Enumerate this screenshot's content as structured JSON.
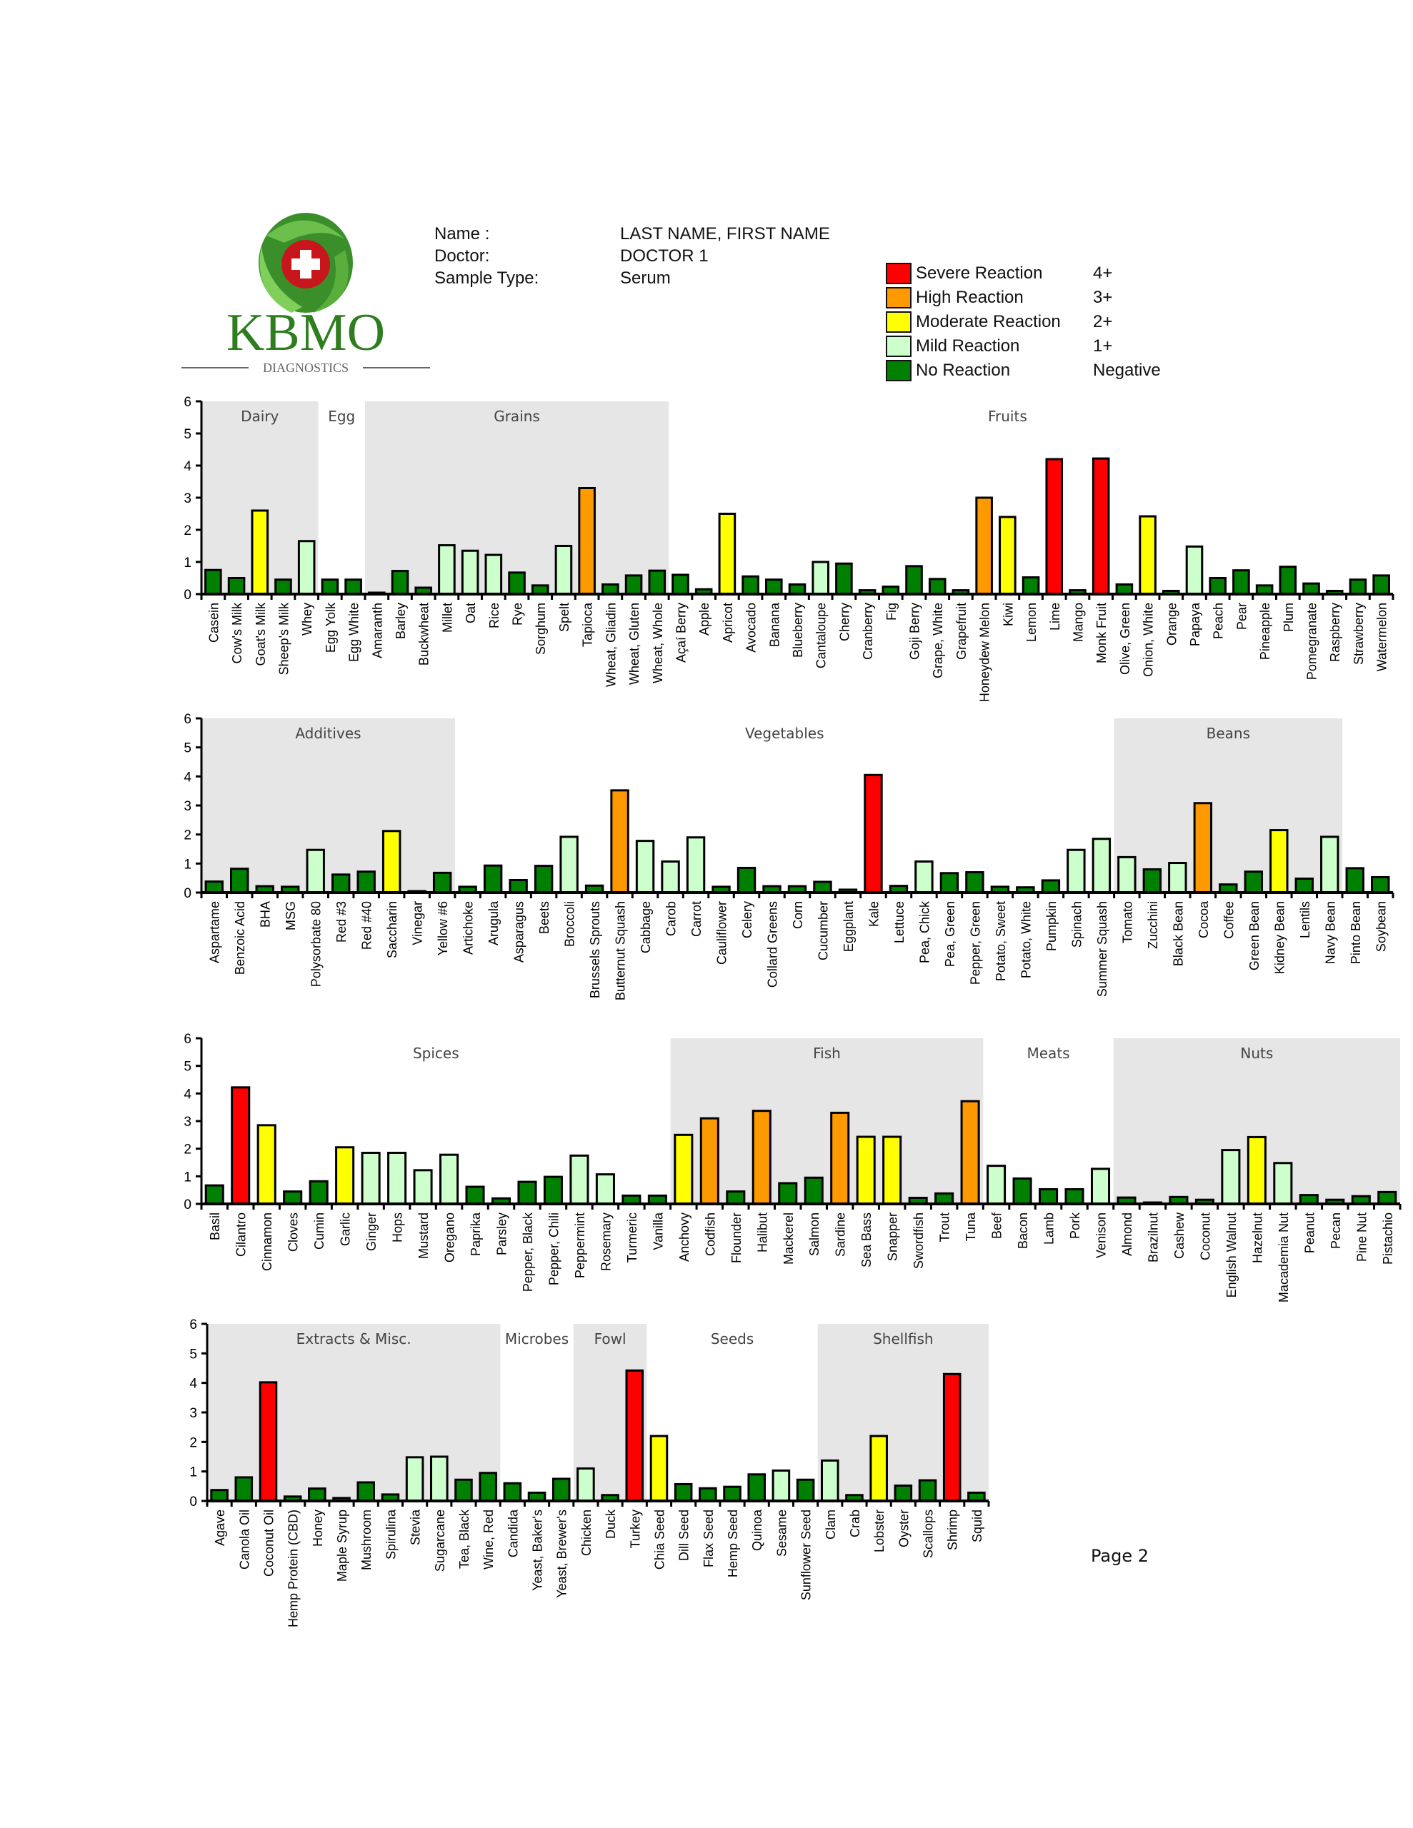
{
  "brand": {
    "name": "KBMO",
    "sub": "DIAGNOSTICS"
  },
  "patient": {
    "rows": [
      {
        "label": "Name :",
        "value": "LAST NAME, FIRST NAME"
      },
      {
        "label": "Doctor:",
        "value": "DOCTOR 1"
      },
      {
        "label": "Sample Type:",
        "value": "Serum"
      }
    ]
  },
  "legend": [
    {
      "name": "Severe Reaction",
      "grade": "4+",
      "color": "#ff0000"
    },
    {
      "name": "High Reaction",
      "grade": "3+",
      "color": "#ff9900"
    },
    {
      "name": "Moderate Reaction",
      "grade": "2+",
      "color": "#ffff00"
    },
    {
      "name": "Mild Reaction",
      "grade": "1+",
      "color": "#ccffcc"
    },
    {
      "name": "No Reaction",
      "grade": "Negative",
      "color": "#008000"
    }
  ],
  "page_label": "Page 2",
  "chart_data": [
    {
      "type": "bar",
      "ylim": [
        0,
        6
      ],
      "yticks": [
        0,
        1,
        2,
        3,
        4,
        5,
        6
      ],
      "groups": [
        {
          "name": "Dairy",
          "start": 0,
          "end": 4,
          "shaded": true
        },
        {
          "name": "Egg",
          "start": 5,
          "end": 6,
          "shaded": false
        },
        {
          "name": "Grains",
          "start": 7,
          "end": 19,
          "shaded": true
        },
        {
          "name": "Fruits",
          "start": 20,
          "end": 48,
          "shaded": false
        }
      ],
      "categories": [
        "Casein",
        "Cow's Milk",
        "Goat's Milk",
        "Sheep's Milk",
        "Whey",
        "Egg Yolk",
        "Egg White",
        "Amaranth",
        "Barley",
        "Buckwheat",
        "Millet",
        "Oat",
        "Rice",
        "Rye",
        "Sorghum",
        "Spelt",
        "Tapioca",
        "Wheat, Gliadin",
        "Wheat, Gluten",
        "Wheat, Whole",
        "Açaí Berry",
        "Apple",
        "Apricot",
        "Avocado",
        "Banana",
        "Blueberry",
        "Cantaloupe",
        "Cherry",
        "Cranberry",
        "Fig",
        "Goji Berry",
        "Grape, White",
        "Grapefruit",
        "Honeydew Melon",
        "Kiwi",
        "Lemon",
        "Lime",
        "Mango",
        "Monk Fruit",
        "Olive, Green",
        "Onion, White",
        "Orange",
        "Papaya",
        "Peach",
        "Pear",
        "Pineapple",
        "Plum",
        "Pomegranate",
        "Raspberry",
        "Strawberry",
        "Watermelon"
      ],
      "values": [
        0.75,
        0.5,
        2.6,
        0.45,
        1.65,
        0.45,
        0.45,
        0.03,
        0.72,
        0.2,
        1.52,
        1.35,
        1.22,
        0.67,
        0.27,
        1.5,
        3.3,
        0.3,
        0.58,
        0.73,
        0.6,
        0.15,
        2.5,
        0.55,
        0.45,
        0.3,
        1.0,
        0.95,
        0.12,
        0.23,
        0.87,
        0.47,
        0.12,
        3.0,
        2.4,
        0.52,
        4.2,
        0.12,
        4.22,
        0.3,
        2.42,
        0.1,
        1.48,
        0.5,
        0.74,
        0.27,
        0.85,
        0.33,
        0.1,
        0.45,
        0.58
      ]
    },
    {
      "type": "bar",
      "ylim": [
        0,
        6
      ],
      "yticks": [
        0,
        1,
        2,
        3,
        4,
        5,
        6
      ],
      "groups": [
        {
          "name": "Additives",
          "start": 0,
          "end": 9,
          "shaded": true
        },
        {
          "name": "Vegetables",
          "start": 10,
          "end": 35,
          "shaded": false
        },
        {
          "name": "Beans",
          "start": 36,
          "end": 44,
          "shaded": true
        }
      ],
      "categories": [
        "Aspartame",
        "Benzoic Acid",
        "BHA",
        "MSG",
        "Polysorbate 80",
        "Red #3",
        "Red #40",
        "Saccharin",
        "Vinegar",
        "Yellow #6",
        "Artichoke",
        "Arugula",
        "Asparagus",
        "Beets",
        "Broccoli",
        "Brussels Sprouts",
        "Butternut Squash",
        "Cabbage",
        "Carob",
        "Carrot",
        "Cauliflower",
        "Celery",
        "Collard Greens",
        "Corn",
        "Cucumber",
        "Eggplant",
        "Kale",
        "Lettuce",
        "Pea, Chick",
        "Pea, Green",
        "Pepper, Green",
        "Potato, Sweet",
        "Potato, White",
        "Pumpkin",
        "Spinach",
        "Summer Squash",
        "Tomato",
        "Zucchini",
        "Black Bean",
        "Cocoa",
        "Coffee",
        "Green Bean",
        "Kidney Bean",
        "Lentils",
        "Navy Bean",
        "Pinto Bean",
        "Soybean"
      ],
      "values": [
        0.38,
        0.82,
        0.22,
        0.2,
        1.47,
        0.62,
        0.72,
        2.12,
        0.05,
        0.68,
        0.2,
        0.93,
        0.43,
        0.92,
        1.92,
        0.24,
        3.52,
        1.78,
        1.07,
        1.9,
        0.2,
        0.85,
        0.22,
        0.22,
        0.37,
        0.1,
        4.05,
        0.23,
        1.07,
        0.67,
        0.7,
        0.2,
        0.18,
        0.42,
        1.47,
        1.85,
        1.22,
        0.8,
        1.02,
        3.08,
        0.28,
        0.72,
        2.15,
        0.48,
        1.92,
        0.84,
        0.53
      ]
    },
    {
      "type": "bar",
      "ylim": [
        0,
        6
      ],
      "yticks": [
        0,
        1,
        2,
        3,
        4,
        5,
        6
      ],
      "groups": [
        {
          "name": "Spices",
          "start": 0,
          "end": 17,
          "shaded": false
        },
        {
          "name": "Fish",
          "start": 18,
          "end": 29,
          "shaded": true
        },
        {
          "name": "Meats",
          "start": 30,
          "end": 34,
          "shaded": false
        },
        {
          "name": "Nuts",
          "start": 35,
          "end": 45,
          "shaded": true
        }
      ],
      "categories": [
        "Basil",
        "Cilantro",
        "Cinnamon",
        "Cloves",
        "Cumin",
        "Garlic",
        "Ginger",
        "Hops",
        "Mustard",
        "Oregano",
        "Paprika",
        "Parsley",
        "Pepper, Black",
        "Pepper, Chili",
        "Peppermint",
        "Rosemary",
        "Turmeric",
        "Vanilla",
        "Anchovy",
        "Codfish",
        "Flounder",
        "Halibut",
        "Mackerel",
        "Salmon",
        "Sardine",
        "Sea Bass",
        "Snapper",
        "Swordfish",
        "Trout",
        "Tuna",
        "Beef",
        "Bacon",
        "Lamb",
        "Pork",
        "Venison",
        "Almond",
        "Brazilnut",
        "Cashew",
        "Coconut",
        "English Walnut",
        "Hazelnut",
        "Macademia Nut",
        "Peanut",
        "Pecan",
        "Pine Nut",
        "Pistachio"
      ],
      "values": [
        0.67,
        4.22,
        2.85,
        0.45,
        0.82,
        2.05,
        1.85,
        1.85,
        1.22,
        1.78,
        0.62,
        0.2,
        0.8,
        0.98,
        1.75,
        1.07,
        0.3,
        0.3,
        2.5,
        3.1,
        0.45,
        3.37,
        0.75,
        0.95,
        3.3,
        2.43,
        2.43,
        0.22,
        0.38,
        3.72,
        1.38,
        0.92,
        0.53,
        0.53,
        1.27,
        0.23,
        0.02,
        0.25,
        0.15,
        1.95,
        2.42,
        1.48,
        0.32,
        0.15,
        0.28,
        0.43
      ]
    },
    {
      "type": "bar",
      "ylim": [
        0,
        6
      ],
      "yticks": [
        0,
        1,
        2,
        3,
        4,
        5,
        6
      ],
      "groups": [
        {
          "name": "Extracts & Misc.",
          "start": 0,
          "end": 11,
          "shaded": true
        },
        {
          "name": "Microbes",
          "start": 12,
          "end": 14,
          "shaded": false
        },
        {
          "name": "Fowl",
          "start": 15,
          "end": 17,
          "shaded": true
        },
        {
          "name": "Seeds",
          "start": 18,
          "end": 24,
          "shaded": false
        },
        {
          "name": "Shellfish",
          "start": 25,
          "end": 31,
          "shaded": true
        }
      ],
      "categories": [
        "Agave",
        "Canola Oil",
        "Coconut Oil",
        "Hemp Protein (CBD)",
        "Honey",
        "Maple Syrup",
        "Mushroom",
        "Spirulina",
        "Stevia",
        "Sugarcane",
        "Tea, Black",
        "Wine, Red",
        "Candida",
        "Yeast, Baker's",
        "Yeast, Brewer's",
        "Chicken",
        "Duck",
        "Turkey",
        "Chia Seed",
        "Dill Seed",
        "Flax Seed",
        "Hemp Seed",
        "Quinoa",
        "Sesame",
        "Sunflower Seed",
        "Clam",
        "Crab",
        "Lobster",
        "Oyster",
        "Scallops",
        "Shrimp",
        "Squid"
      ],
      "values": [
        0.37,
        0.8,
        4.02,
        0.15,
        0.42,
        0.1,
        0.63,
        0.22,
        1.48,
        1.5,
        0.72,
        0.95,
        0.6,
        0.28,
        0.75,
        1.1,
        0.2,
        4.42,
        2.2,
        0.57,
        0.43,
        0.48,
        0.9,
        1.03,
        0.72,
        1.37,
        0.2,
        2.2,
        0.52,
        0.7,
        4.3,
        0.28
      ]
    }
  ]
}
